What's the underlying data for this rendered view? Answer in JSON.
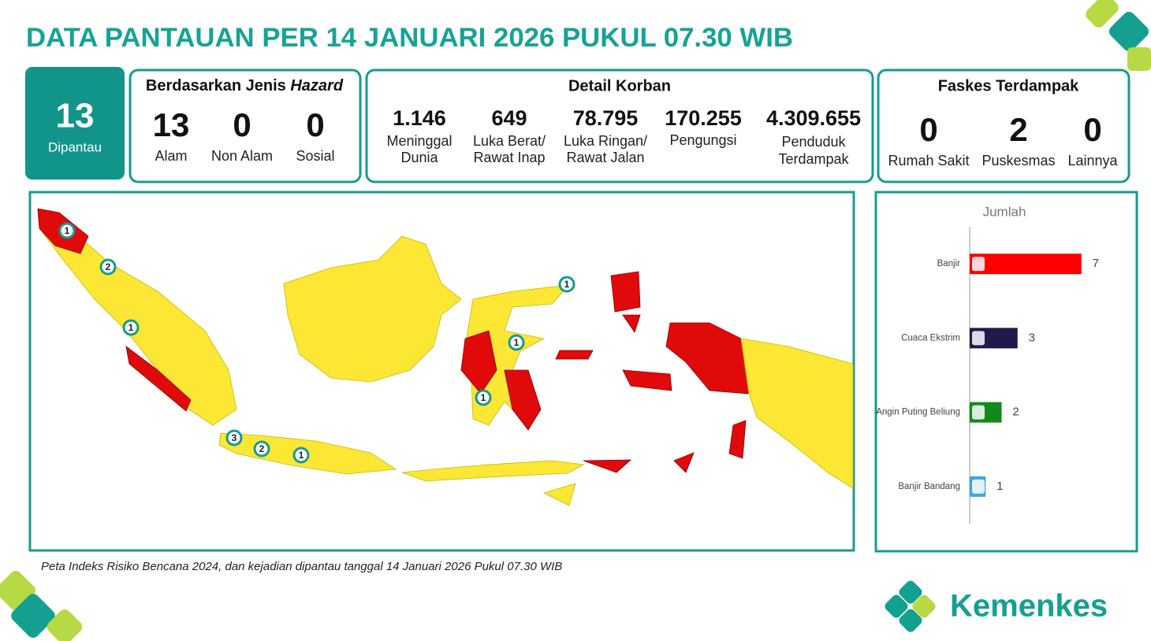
{
  "header": {
    "title": "DATA PANTAUAN PER 14 JANUARI 2026 PUKUL 07.30 WIB"
  },
  "monitored": {
    "value": "13",
    "label": "Dipantau"
  },
  "hazard": {
    "title": "Berdasarkan Jenis ",
    "title_italic": "Hazard",
    "items": [
      {
        "value": "13",
        "label": "Alam"
      },
      {
        "value": "0",
        "label": "Non Alam"
      },
      {
        "value": "0",
        "label": "Sosial"
      }
    ]
  },
  "victims": {
    "title": "Detail Korban",
    "items": [
      {
        "value": "1.146",
        "label": [
          "Meninggal",
          "Dunia"
        ]
      },
      {
        "value": "649",
        "label": [
          "Luka Berat/",
          "Rawat Inap"
        ]
      },
      {
        "value": "78.795",
        "label": [
          "Luka Ringan/",
          "Rawat Jalan"
        ]
      },
      {
        "value": "170.255",
        "label": [
          "Pengungsi"
        ]
      },
      {
        "value": "4.309.655",
        "label": [
          "Penduduk",
          "Terdampak"
        ]
      }
    ]
  },
  "facilities": {
    "title": "Faskes Terdampak",
    "items": [
      {
        "value": "0",
        "label": "Rumah Sakit"
      },
      {
        "value": "2",
        "label": "Puskesmas"
      },
      {
        "value": "0",
        "label": "Lainnya"
      }
    ]
  },
  "map": {
    "markers": [
      "1",
      "2",
      "1",
      "3",
      "2",
      "1",
      "1",
      "1",
      "1"
    ],
    "caption": "Peta Indeks Risiko Bencana 2024, dan kejadian dipantau tanggal 14 Januari 2026 Pukul 07.30 WIB"
  },
  "chart_data": {
    "type": "bar",
    "orientation": "horizontal",
    "title": "Jumlah",
    "categories": [
      "Banjir",
      "Cuaca Ekstrim",
      "Angin Puting Beliung",
      "Banjir Bandang"
    ],
    "values": [
      7,
      3,
      2,
      1
    ],
    "colors": [
      "#ff0000",
      "#1e1a4a",
      "#12891a",
      "#38a8e0"
    ],
    "xlim": [
      0,
      8
    ]
  },
  "logo": {
    "text": "Kemenkes"
  }
}
